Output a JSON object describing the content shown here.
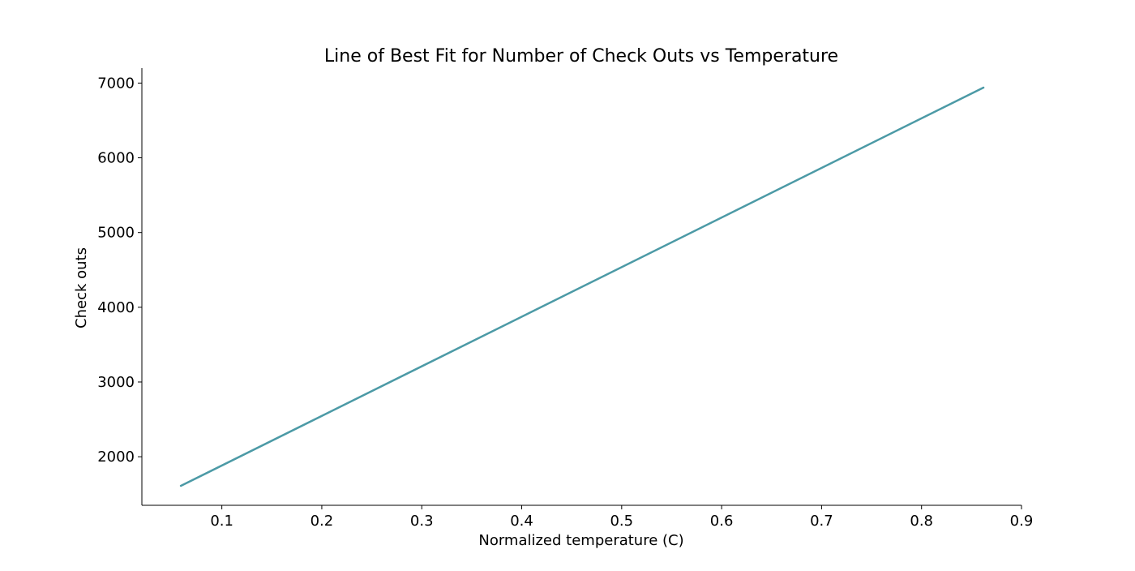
{
  "chart_data": {
    "type": "line",
    "title": "Line of Best Fit for Number of Check Outs vs Temperature",
    "xlabel": "Normalized temperature (C)",
    "ylabel": "Check outs",
    "xlim": [
      0.02,
      0.9
    ],
    "ylim": [
      1350,
      7200
    ],
    "xticks": [
      0.1,
      0.2,
      0.3,
      0.4,
      0.5,
      0.6,
      0.7,
      0.8,
      0.9
    ],
    "xtick_labels": [
      "0.1",
      "0.2",
      "0.3",
      "0.4",
      "0.5",
      "0.6",
      "0.7",
      "0.8",
      "0.9"
    ],
    "yticks": [
      2000,
      3000,
      4000,
      5000,
      6000,
      7000
    ],
    "ytick_labels": [
      "2000",
      "3000",
      "4000",
      "5000",
      "6000",
      "7000"
    ],
    "grid": false,
    "legend": false,
    "series": [
      {
        "x": [
          0.059,
          0.862
        ],
        "y": [
          1610,
          6940
        ],
        "color": "#4c9aa6"
      }
    ]
  }
}
